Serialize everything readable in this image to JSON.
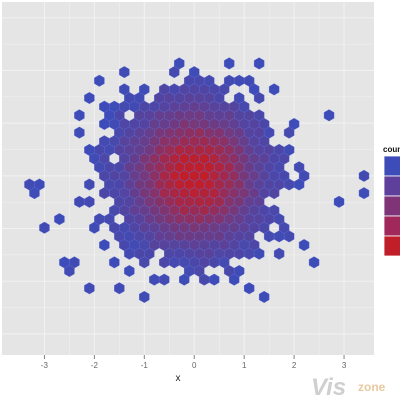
{
  "chart_data": {
    "type": "hexbin",
    "xlabel": "x",
    "ylabel": "",
    "xlim": [
      -3.85,
      3.6
    ],
    "ylim": [
      -3.4,
      3.3
    ],
    "x_ticks": [
      -3,
      -2,
      -1,
      0,
      1,
      2,
      3
    ],
    "x_tick_labels": [
      "-3",
      "-2",
      "-1",
      "0",
      "1",
      "2",
      "3"
    ],
    "grid": true,
    "color_low": "#3d4cb8",
    "color_high": "#c01f2a",
    "legend": {
      "title": "count",
      "placement": "right",
      "colors": [
        "#3d4cb8",
        "#5e3f9c",
        "#7f3478",
        "#a0285a",
        "#c01f2a"
      ]
    },
    "distribution": {
      "kind": "bivariate normal",
      "center": [
        0,
        0
      ],
      "sd_x": 1,
      "sd_y": 1,
      "bin_width_x": 0.2
    }
  },
  "watermark": {
    "brand": "Vis",
    "suffix": "zone"
  },
  "colors": {
    "panel_bg": "#e5e5e5",
    "grid": "#f2f2f2",
    "hex_stroke": "#5a6ad0"
  }
}
